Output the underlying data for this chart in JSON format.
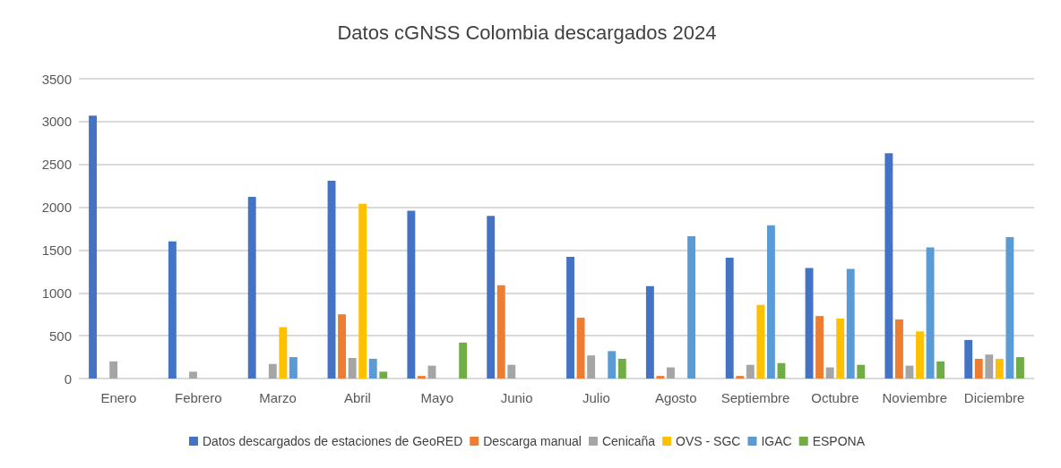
{
  "chart_data": {
    "type": "bar",
    "title": "Datos cGNSS Colombia descargados 2024",
    "categories": [
      "Enero",
      "Febrero",
      "Marzo",
      "Abril",
      "Mayo",
      "Junio",
      "Julio",
      "Agosto",
      "Septiembre",
      "Octubre",
      "Noviembre",
      "Diciembre"
    ],
    "series": [
      {
        "name": "Datos descargados de estaciones de GeoRED",
        "color": "#4472c4",
        "values": [
          3070,
          1600,
          2120,
          2310,
          1960,
          1900,
          1420,
          1080,
          1410,
          1290,
          2630,
          450
        ]
      },
      {
        "name": "Descarga manual",
        "color": "#ed7d31",
        "values": [
          null,
          null,
          null,
          750,
          30,
          1090,
          710,
          30,
          30,
          730,
          690,
          230
        ]
      },
      {
        "name": "Cenicaña",
        "color": "#a5a5a5",
        "values": [
          200,
          80,
          170,
          240,
          150,
          160,
          270,
          130,
          160,
          130,
          150,
          280
        ]
      },
      {
        "name": "OVS - SGC",
        "color": "#ffc000",
        "values": [
          null,
          null,
          600,
          2040,
          null,
          null,
          null,
          null,
          860,
          700,
          550,
          230
        ]
      },
      {
        "name": "IGAC",
        "color": "#5b9bd5",
        "values": [
          null,
          null,
          250,
          230,
          null,
          null,
          320,
          1660,
          1790,
          1280,
          1530,
          1650
        ]
      },
      {
        "name": "ESPONA",
        "color": "#70ad47",
        "values": [
          null,
          null,
          null,
          80,
          420,
          null,
          230,
          null,
          180,
          160,
          200,
          250
        ]
      }
    ],
    "ylim": [
      0,
      3500
    ],
    "yticks": [
      0,
      500,
      1000,
      1500,
      2000,
      2500,
      3000,
      3500
    ],
    "grid": "y",
    "legend": "bottom"
  }
}
